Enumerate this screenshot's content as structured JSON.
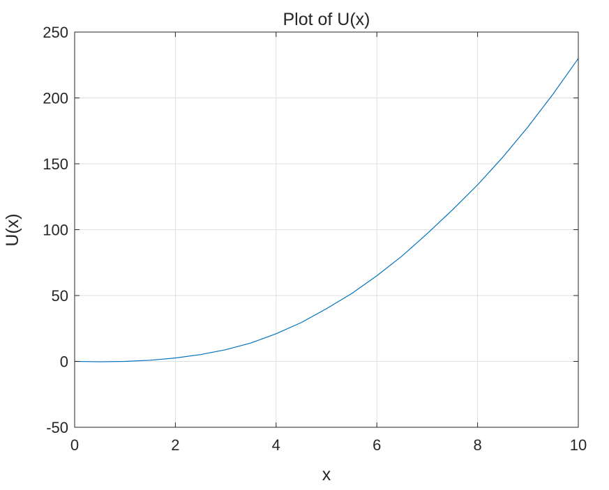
{
  "chart_data": {
    "type": "line",
    "title": "Plot of U(x)",
    "xlabel": "x",
    "ylabel": "U(x)",
    "xlim": [
      0,
      10
    ],
    "ylim": [
      -50,
      250
    ],
    "xticks": [
      0,
      2,
      4,
      6,
      8,
      10
    ],
    "yticks": [
      -50,
      0,
      50,
      100,
      150,
      200,
      250
    ],
    "xtick_labels": [
      "0",
      "2",
      "4",
      "6",
      "8",
      "10"
    ],
    "ytick_labels": [
      "-50",
      "0",
      "50",
      "100",
      "150",
      "200",
      "250"
    ],
    "grid": true,
    "box": true,
    "series": [
      {
        "color": "#0072BD",
        "x": [
          0,
          0.5,
          1,
          1.5,
          2,
          2.5,
          3,
          3.5,
          4,
          4.5,
          5,
          5.5,
          6,
          6.5,
          7,
          7.5,
          8,
          8.5,
          9,
          9.5,
          10
        ],
        "y": [
          0,
          -0.3,
          0,
          0.9,
          2.6,
          5.2,
          8.9,
          14,
          21,
          29.5,
          40,
          51.5,
          65,
          80,
          97,
          115,
          134,
          155,
          178,
          203,
          230
        ]
      }
    ]
  }
}
